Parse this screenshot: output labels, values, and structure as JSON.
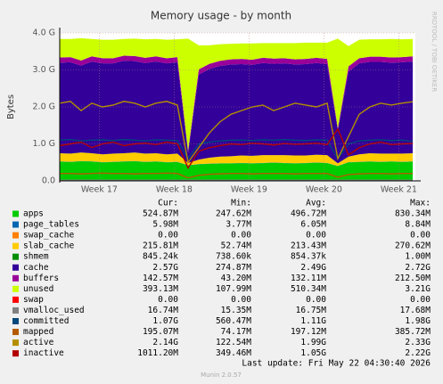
{
  "chart_data": {
    "type": "area",
    "title": "Memory usage - by month",
    "y_label": "Bytes",
    "watermark": "RRDTOOL / TOBI OETIKER",
    "x": [
      0,
      1,
      2,
      3,
      4,
      5,
      6,
      7,
      8,
      9,
      10,
      11,
      12,
      13,
      14,
      15,
      16,
      17,
      18,
      19,
      20,
      21,
      22,
      23,
      24,
      25,
      26,
      27,
      28,
      29,
      30,
      31,
      32,
      33
    ],
    "xlim": [
      0,
      33.25
    ],
    "xticks": [
      {
        "value": 3.7,
        "label": "Week 17"
      },
      {
        "value": 10.7,
        "label": "Week 18"
      },
      {
        "value": 17.7,
        "label": "Week 19"
      },
      {
        "value": 24.7,
        "label": "Week 20"
      },
      {
        "value": 31.7,
        "label": "Week 21"
      }
    ],
    "ylim": [
      0,
      4
    ],
    "yticks": [
      {
        "value": 0,
        "label": "0.0"
      },
      {
        "value": 1,
        "label": "1.0 G"
      },
      {
        "value": 2,
        "label": "2.0 G"
      },
      {
        "value": 3,
        "label": "3.0 G"
      },
      {
        "value": 4,
        "label": "4.0 G"
      }
    ],
    "grid": true,
    "legend_columns": [
      "Cur:",
      "Min:",
      "Avg:",
      "Max:"
    ],
    "series": [
      {
        "name": "apps",
        "color": "#00CC00",
        "draw": "stack",
        "cur": "524.87M",
        "min": "247.62M",
        "avg": "496.72M",
        "max": "830.34M",
        "values": [
          0.52,
          0.51,
          0.53,
          0.52,
          0.5,
          0.51,
          0.52,
          0.53,
          0.51,
          0.52,
          0.5,
          0.51,
          0.42,
          0.45,
          0.46,
          0.47,
          0.47,
          0.48,
          0.47,
          0.48,
          0.49,
          0.48,
          0.47,
          0.48,
          0.49,
          0.48,
          0.4,
          0.5,
          0.51,
          0.52,
          0.51,
          0.52,
          0.51,
          0.52
        ]
      },
      {
        "name": "page_tables",
        "color": "#0066B3",
        "draw": "stack",
        "cur": "5.98M",
        "min": "3.77M",
        "avg": "6.05M",
        "max": "8.84M",
        "values": [
          0.006,
          0.006,
          0.006,
          0.006,
          0.006,
          0.006,
          0.006,
          0.006,
          0.006,
          0.006,
          0.006,
          0.006,
          0.004,
          0.005,
          0.006,
          0.006,
          0.006,
          0.006,
          0.006,
          0.006,
          0.006,
          0.006,
          0.006,
          0.006,
          0.006,
          0.006,
          0.004,
          0.005,
          0.006,
          0.006,
          0.006,
          0.006,
          0.006,
          0.006
        ]
      },
      {
        "name": "swap_cache",
        "color": "#FF8000",
        "draw": "stack",
        "cur": "0.00",
        "min": "0.00",
        "avg": "0.00",
        "max": "0.00",
        "values": [
          0,
          0,
          0,
          0,
          0,
          0,
          0,
          0,
          0,
          0,
          0,
          0,
          0,
          0,
          0,
          0,
          0,
          0,
          0,
          0,
          0,
          0,
          0,
          0,
          0,
          0,
          0,
          0,
          0,
          0,
          0,
          0,
          0,
          0
        ]
      },
      {
        "name": "slab_cache",
        "color": "#FFCC00",
        "draw": "stack",
        "cur": "215.81M",
        "min": "52.74M",
        "avg": "213.43M",
        "max": "270.62M",
        "values": [
          0.22,
          0.22,
          0.23,
          0.22,
          0.21,
          0.22,
          0.22,
          0.23,
          0.22,
          0.22,
          0.21,
          0.22,
          0.06,
          0.12,
          0.16,
          0.18,
          0.19,
          0.2,
          0.2,
          0.21,
          0.2,
          0.21,
          0.21,
          0.2,
          0.21,
          0.21,
          0.07,
          0.15,
          0.2,
          0.22,
          0.22,
          0.21,
          0.22,
          0.22
        ]
      },
      {
        "name": "shmem",
        "color": "#008F00",
        "draw": "stack",
        "cur": "845.24k",
        "min": "738.60k",
        "avg": "854.37k",
        "max": "1.00M",
        "values": [
          0.001,
          0.001,
          0.001,
          0.001,
          0.001,
          0.001,
          0.001,
          0.001,
          0.001,
          0.001,
          0.001,
          0.001,
          0.001,
          0.001,
          0.001,
          0.001,
          0.001,
          0.001,
          0.001,
          0.001,
          0.001,
          0.001,
          0.001,
          0.001,
          0.001,
          0.001,
          0.001,
          0.001,
          0.001,
          0.001,
          0.001,
          0.001,
          0.001,
          0.001
        ]
      },
      {
        "name": "cache",
        "color": "#330099",
        "draw": "stack",
        "cur": "2.57G",
        "min": "274.87M",
        "avg": "2.49G",
        "max": "2.72G",
        "values": [
          2.45,
          2.47,
          2.35,
          2.48,
          2.46,
          2.44,
          2.5,
          2.47,
          2.45,
          2.48,
          2.46,
          2.47,
          0.28,
          2.3,
          2.4,
          2.45,
          2.48,
          2.47,
          2.46,
          2.49,
          2.47,
          2.48,
          2.46,
          2.47,
          2.48,
          2.46,
          0.9,
          2.3,
          2.46,
          2.47,
          2.48,
          2.46,
          2.47,
          2.48
        ]
      },
      {
        "name": "buffers",
        "color": "#990099",
        "draw": "stack",
        "cur": "142.57M",
        "min": "43.20M",
        "avg": "132.11M",
        "max": "212.50M",
        "values": [
          0.14,
          0.14,
          0.14,
          0.14,
          0.14,
          0.14,
          0.14,
          0.14,
          0.14,
          0.14,
          0.14,
          0.14,
          0.05,
          0.14,
          0.14,
          0.14,
          0.14,
          0.14,
          0.14,
          0.14,
          0.14,
          0.14,
          0.14,
          0.14,
          0.14,
          0.14,
          0.05,
          0.14,
          0.14,
          0.14,
          0.14,
          0.14,
          0.14,
          0.14
        ]
      },
      {
        "name": "unused",
        "color": "#CCFF00",
        "draw": "stack",
        "cur": "393.13M",
        "min": "107.99M",
        "avg": "510.34M",
        "max": "3.21G",
        "values": [
          0.5,
          0.49,
          0.6,
          0.47,
          0.5,
          0.5,
          0.45,
          0.47,
          0.5,
          0.47,
          0.5,
          0.48,
          3.03,
          0.65,
          0.5,
          0.45,
          0.42,
          0.42,
          0.44,
          0.4,
          0.42,
          0.41,
          0.44,
          0.44,
          0.41,
          0.44,
          2.42,
          0.55,
          0.5,
          0.47,
          0.47,
          0.5,
          0.48,
          0.47
        ]
      },
      {
        "name": "swap",
        "color": "#FF0000",
        "draw": "stack",
        "cur": "0.00",
        "min": "0.00",
        "avg": "0.00",
        "max": "0.00",
        "values": [
          0,
          0,
          0,
          0,
          0,
          0,
          0,
          0,
          0,
          0,
          0,
          0,
          0,
          0,
          0,
          0,
          0,
          0,
          0,
          0,
          0,
          0,
          0,
          0,
          0,
          0,
          0,
          0,
          0,
          0,
          0,
          0,
          0,
          0
        ]
      },
      {
        "name": "vmalloc_used",
        "color": "#808080",
        "draw": "line",
        "cur": "16.74M",
        "min": "15.35M",
        "avg": "16.75M",
        "max": "17.68M",
        "values": [
          0.017,
          0.017,
          0.017,
          0.017,
          0.017,
          0.017,
          0.017,
          0.017,
          0.017,
          0.017,
          0.017,
          0.017,
          0.015,
          0.017,
          0.017,
          0.017,
          0.017,
          0.017,
          0.017,
          0.017,
          0.017,
          0.017,
          0.017,
          0.017,
          0.017,
          0.017,
          0.015,
          0.017,
          0.017,
          0.017,
          0.017,
          0.017,
          0.017,
          0.017
        ]
      },
      {
        "name": "committed",
        "color": "#00487D",
        "draw": "line",
        "cur": "1.07G",
        "min": "560.47M",
        "avg": "1.11G",
        "max": "1.98G",
        "values": [
          1.1,
          1.12,
          1.08,
          1.1,
          1.11,
          1.09,
          1.12,
          1.1,
          1.08,
          1.11,
          1.1,
          1.09,
          0.6,
          1.0,
          1.05,
          1.08,
          1.1,
          1.1,
          1.09,
          1.11,
          1.1,
          1.12,
          1.1,
          1.09,
          1.11,
          1.1,
          0.6,
          1.0,
          1.08,
          1.1,
          1.11,
          1.09,
          1.1,
          1.07
        ]
      },
      {
        "name": "mapped",
        "color": "#B35A00",
        "draw": "line",
        "cur": "195.07M",
        "min": "74.17M",
        "avg": "197.12M",
        "max": "385.72M",
        "values": [
          0.2,
          0.2,
          0.19,
          0.2,
          0.21,
          0.2,
          0.2,
          0.19,
          0.2,
          0.2,
          0.21,
          0.2,
          0.08,
          0.15,
          0.18,
          0.19,
          0.2,
          0.2,
          0.19,
          0.2,
          0.2,
          0.2,
          0.19,
          0.2,
          0.2,
          0.2,
          0.1,
          0.17,
          0.19,
          0.2,
          0.2,
          0.19,
          0.2,
          0.2
        ]
      },
      {
        "name": "active",
        "color": "#B38F00",
        "draw": "line",
        "cur": "2.14G",
        "min": "122.54M",
        "avg": "1.99G",
        "max": "2.33G",
        "values": [
          2.1,
          2.15,
          1.9,
          2.1,
          2.0,
          2.05,
          2.15,
          2.1,
          2.0,
          2.1,
          2.15,
          2.05,
          0.5,
          0.9,
          1.3,
          1.6,
          1.8,
          1.9,
          2.0,
          2.05,
          1.9,
          2.0,
          2.1,
          2.05,
          2.0,
          2.1,
          0.6,
          1.2,
          1.8,
          2.0,
          2.1,
          2.05,
          2.1,
          2.14
        ]
      },
      {
        "name": "inactive",
        "color": "#B30000",
        "draw": "line",
        "cur": "1011.20M",
        "min": "349.46M",
        "avg": "1.05G",
        "max": "2.22G",
        "values": [
          0.95,
          1.0,
          1.05,
          0.9,
          1.0,
          1.05,
          0.95,
          1.0,
          1.02,
          0.98,
          1.05,
          1.0,
          0.35,
          0.8,
          0.9,
          0.95,
          1.0,
          0.98,
          1.02,
          1.0,
          0.97,
          1.01,
          0.99,
          1.0,
          1.02,
          0.98,
          1.4,
          0.7,
          0.9,
          1.0,
          1.05,
          0.98,
          1.0,
          1.01
        ]
      }
    ],
    "last_update": "Last update: Fri May 22 04:30:40 2026",
    "footer": "Munin 2.0.57"
  }
}
